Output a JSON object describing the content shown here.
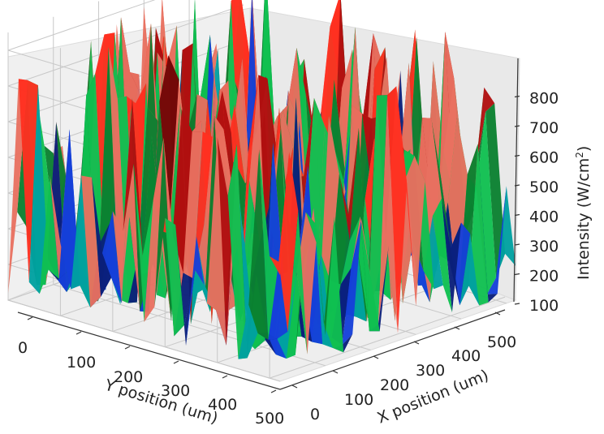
{
  "chart_data": {
    "type": "surface3d",
    "xlabel": "X position (um)",
    "ylabel": "Y position (um)",
    "zlabel_main": "Intensity (W/cm",
    "zlabel_sup": "2",
    "zlabel_close": ")",
    "x_ticks": [
      "0",
      "100",
      "200",
      "300",
      "400",
      "500"
    ],
    "y_ticks": [
      "0",
      "100",
      "200",
      "300",
      "400",
      "500"
    ],
    "z_ticks": [
      "100",
      "200",
      "300",
      "400",
      "500",
      "600",
      "700",
      "800"
    ],
    "xlim": [
      0,
      520
    ],
    "ylim": [
      0,
      520
    ],
    "zlim": [
      100,
      850
    ],
    "grid": true,
    "colormap": [
      "#0a1f7a",
      "#1540d8",
      "#00a0a0",
      "#10c050",
      "#0a8030",
      "#e87060",
      "#ff3020",
      "#b01010",
      "#700808"
    ],
    "surface_description_values": {
      "peak_max": 850,
      "floor_level": 110
    }
  }
}
